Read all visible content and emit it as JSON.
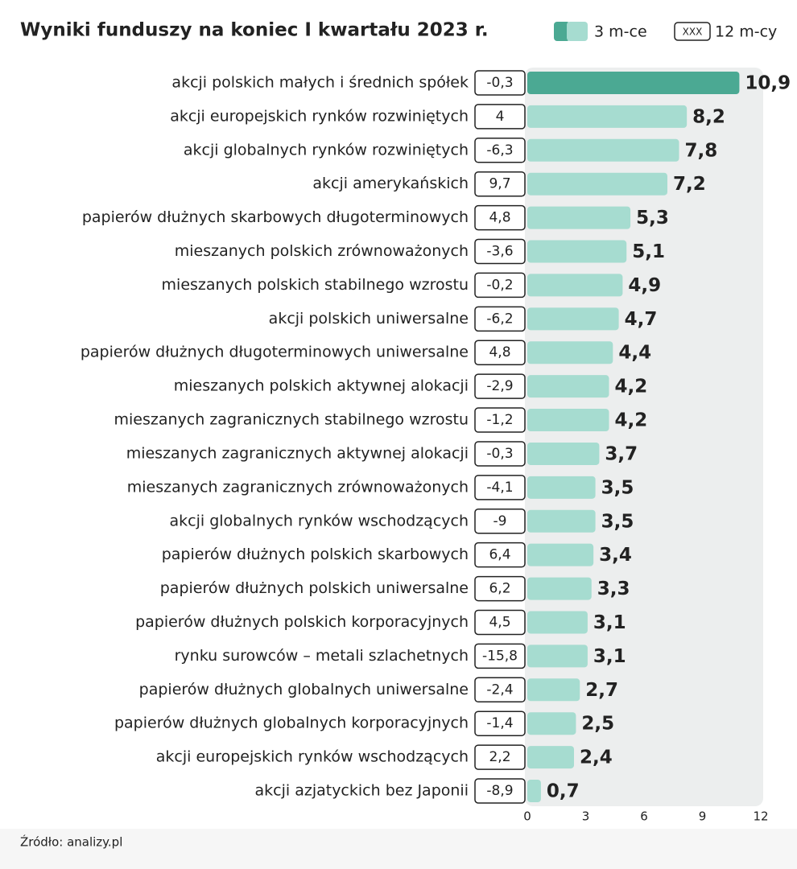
{
  "chart_data": {
    "type": "bar",
    "title": "Wyniki funduszy na koniec I kwartału 2023 r.",
    "source": "Źródło: analizy.pl",
    "legend_box_text": "XXX",
    "categories": [
      "akcji polskich małych i średnich spółek",
      "akcji europejskich rynków rozwiniętych",
      "akcji globalnych rynków rozwiniętych",
      "akcji amerykańskich",
      "papierów dłużnych skarbowych długoterminowych",
      "mieszanych polskich zrównoważonych",
      "mieszanych polskich stabilnego wzrostu",
      "akcji polskich uniwersalne",
      "papierów dłużnych długoterminowych uniwersalne",
      "mieszanych polskich aktywnej alokacji",
      "mieszanych zagranicznych stabilnego wzrostu",
      "mieszanych zagranicznych aktywnej alokacji",
      "mieszanych zagranicznych zrównoważonych",
      "akcji globalnych rynków wschodzących",
      "papierów dłużnych polskich skarbowych",
      "papierów dłużnych polskich uniwersalne",
      "papierów dłużnych polskich korporacyjnych",
      "rynku surowców – metali szlachetnych",
      "papierów dłużnych globalnych uniwersalne",
      "papierów dłużnych globalnych korporacyjnych",
      "akcji europejskich rynków wschodzących",
      "akcji azjatyckich bez Japonii"
    ],
    "series": [
      {
        "name": "3 m-ce",
        "color": "#a6dcd0",
        "colors": [
          "#4ba993",
          "#a6dcd0",
          "#a6dcd0",
          "#a6dcd0",
          "#a6dcd0",
          "#a6dcd0",
          "#a6dcd0",
          "#a6dcd0",
          "#a6dcd0",
          "#a6dcd0",
          "#a6dcd0",
          "#a6dcd0",
          "#a6dcd0",
          "#a6dcd0",
          "#a6dcd0",
          "#a6dcd0",
          "#a6dcd0",
          "#a6dcd0",
          "#a6dcd0",
          "#a6dcd0",
          "#a6dcd0",
          "#a6dcd0"
        ],
        "values": [
          10.9,
          8.2,
          7.8,
          7.2,
          5.3,
          5.1,
          4.9,
          4.7,
          4.4,
          4.2,
          4.2,
          3.7,
          3.5,
          3.5,
          3.4,
          3.3,
          3.1,
          3.1,
          2.7,
          2.5,
          2.4,
          0.7
        ],
        "value_labels": [
          "10,9",
          "8,2",
          "7,8",
          "7,2",
          "5,3",
          "5,1",
          "4,9",
          "4,7",
          "4,4",
          "4,2",
          "4,2",
          "3,7",
          "3,5",
          "3,5",
          "3,4",
          "3,3",
          "3,1",
          "3,1",
          "2,7",
          "2,5",
          "2,4",
          "0,7"
        ]
      },
      {
        "name": "12 m-cy",
        "values": [
          -0.3,
          4,
          -6.3,
          9.7,
          4.8,
          -3.6,
          -0.2,
          -6.2,
          4.8,
          -2.9,
          -1.2,
          -0.3,
          -4.1,
          -9,
          6.4,
          6.2,
          4.5,
          -15.8,
          -2.4,
          -1.4,
          2.2,
          -8.9
        ],
        "value_labels": [
          "-0,3",
          "4",
          "-6,3",
          "9,7",
          "4,8",
          "-3,6",
          "-0,2",
          "-6,2",
          "4,8",
          "-2,9",
          "-1,2",
          "-0,3",
          "-4,1",
          "-9",
          "6,4",
          "6,2",
          "4,5",
          "-15,8",
          "-2,4",
          "-1,4",
          "2,2",
          "-8,9"
        ]
      }
    ],
    "xlim": [
      0,
      12
    ],
    "xticks": [
      0,
      3,
      6,
      9,
      12
    ]
  }
}
